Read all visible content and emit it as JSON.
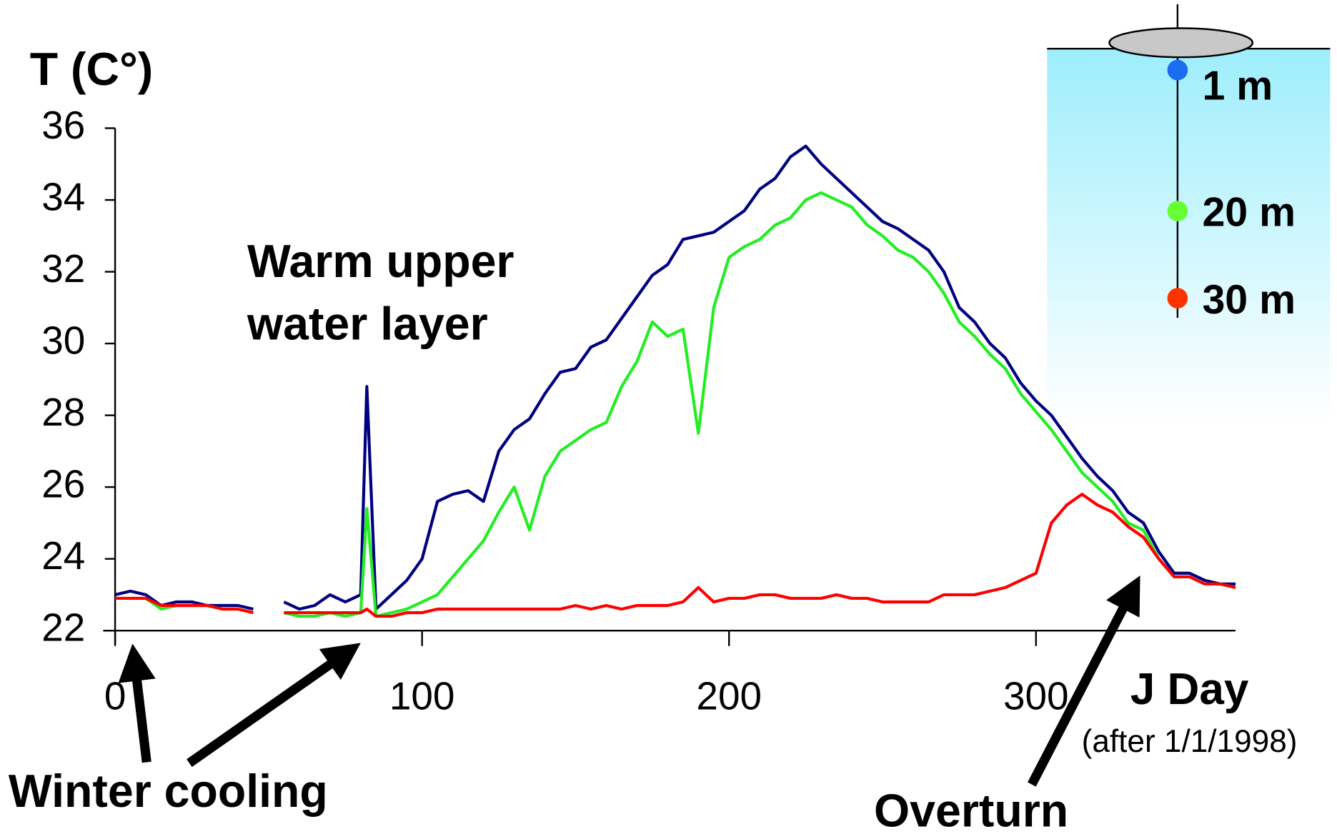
{
  "chart_data": {
    "type": "line",
    "title": "T (C°)",
    "x_label": "J Day",
    "x_sublabel": "(after 1/1/1998)",
    "annotations": [
      [
        "Warm upper",
        "water layer"
      ],
      [
        "Winter cooling"
      ],
      [
        "Overturn"
      ]
    ],
    "xlim": [
      0,
      365
    ],
    "xticks": [
      0,
      100,
      200,
      300
    ],
    "ylim": [
      22,
      36
    ],
    "yticks": [
      22,
      24,
      26,
      28,
      30,
      32,
      34,
      36
    ],
    "x": [
      0,
      5,
      10,
      15,
      20,
      25,
      30,
      35,
      40,
      45,
      50,
      55,
      60,
      65,
      70,
      75,
      80,
      82,
      85,
      90,
      95,
      100,
      105,
      110,
      115,
      120,
      125,
      130,
      135,
      140,
      145,
      150,
      155,
      160,
      165,
      170,
      175,
      180,
      185,
      190,
      195,
      200,
      205,
      210,
      215,
      220,
      225,
      230,
      235,
      240,
      245,
      250,
      255,
      260,
      265,
      270,
      275,
      280,
      285,
      290,
      295,
      300,
      305,
      310,
      315,
      320,
      325,
      330,
      335,
      340,
      345,
      350,
      355,
      360,
      365
    ],
    "series": [
      {
        "name": "1 m",
        "color": "#000080",
        "legend_color": "#1a6cf0",
        "values": [
          23.0,
          23.1,
          23.0,
          22.7,
          22.8,
          22.8,
          22.7,
          22.7,
          22.7,
          22.6,
          null,
          22.8,
          22.6,
          22.7,
          23.0,
          22.8,
          23.0,
          28.8,
          22.6,
          23.0,
          23.4,
          24.0,
          25.6,
          25.8,
          25.9,
          25.6,
          27.0,
          27.6,
          27.9,
          28.6,
          29.2,
          29.3,
          29.9,
          30.1,
          30.7,
          31.3,
          31.9,
          32.2,
          32.9,
          33.0,
          33.1,
          33.4,
          33.7,
          34.3,
          34.6,
          35.2,
          35.5,
          35.0,
          34.6,
          34.2,
          33.8,
          33.4,
          33.2,
          32.9,
          32.6,
          32.0,
          31.0,
          30.6,
          30.0,
          29.6,
          28.9,
          28.4,
          28.0,
          27.4,
          26.8,
          26.3,
          25.9,
          25.3,
          25.0,
          24.2,
          23.6,
          23.6,
          23.4,
          23.3,
          23.3
        ]
      },
      {
        "name": "20 m",
        "color": "#22ee22",
        "legend_color": "#66ff33",
        "values": [
          22.9,
          22.9,
          22.9,
          22.6,
          22.7,
          22.7,
          22.7,
          22.6,
          22.6,
          22.5,
          null,
          22.5,
          22.4,
          22.4,
          22.5,
          22.4,
          22.5,
          25.4,
          22.4,
          22.5,
          22.6,
          22.8,
          23.0,
          23.5,
          24.0,
          24.5,
          25.3,
          26.0,
          24.8,
          26.3,
          27.0,
          27.3,
          27.6,
          27.8,
          28.8,
          29.5,
          30.6,
          30.2,
          30.4,
          27.5,
          31.0,
          32.4,
          32.7,
          32.9,
          33.3,
          33.5,
          34.0,
          34.2,
          34.0,
          33.8,
          33.3,
          33.0,
          32.6,
          32.4,
          32.0,
          31.4,
          30.6,
          30.2,
          29.7,
          29.3,
          28.6,
          28.1,
          27.6,
          27.0,
          26.4,
          26.0,
          25.6,
          25.0,
          24.8,
          24.0,
          23.5,
          23.5,
          23.3,
          23.3,
          23.2
        ]
      },
      {
        "name": "30 m",
        "color": "#ff0000",
        "legend_color": "#ff3300",
        "values": [
          22.9,
          22.9,
          22.9,
          22.7,
          22.7,
          22.7,
          22.7,
          22.6,
          22.6,
          22.5,
          null,
          22.5,
          22.5,
          22.5,
          22.5,
          22.5,
          22.5,
          22.6,
          22.4,
          22.4,
          22.5,
          22.5,
          22.6,
          22.6,
          22.6,
          22.6,
          22.6,
          22.6,
          22.6,
          22.6,
          22.6,
          22.7,
          22.6,
          22.7,
          22.6,
          22.7,
          22.7,
          22.7,
          22.8,
          23.2,
          22.8,
          22.9,
          22.9,
          23.0,
          23.0,
          22.9,
          22.9,
          22.9,
          23.0,
          22.9,
          22.9,
          22.8,
          22.8,
          22.8,
          22.8,
          23.0,
          23.0,
          23.0,
          23.1,
          23.2,
          23.4,
          23.6,
          25.0,
          25.5,
          25.8,
          25.5,
          25.3,
          24.9,
          24.6,
          24.0,
          23.5,
          23.5,
          23.3,
          23.3,
          23.2
        ]
      }
    ]
  }
}
